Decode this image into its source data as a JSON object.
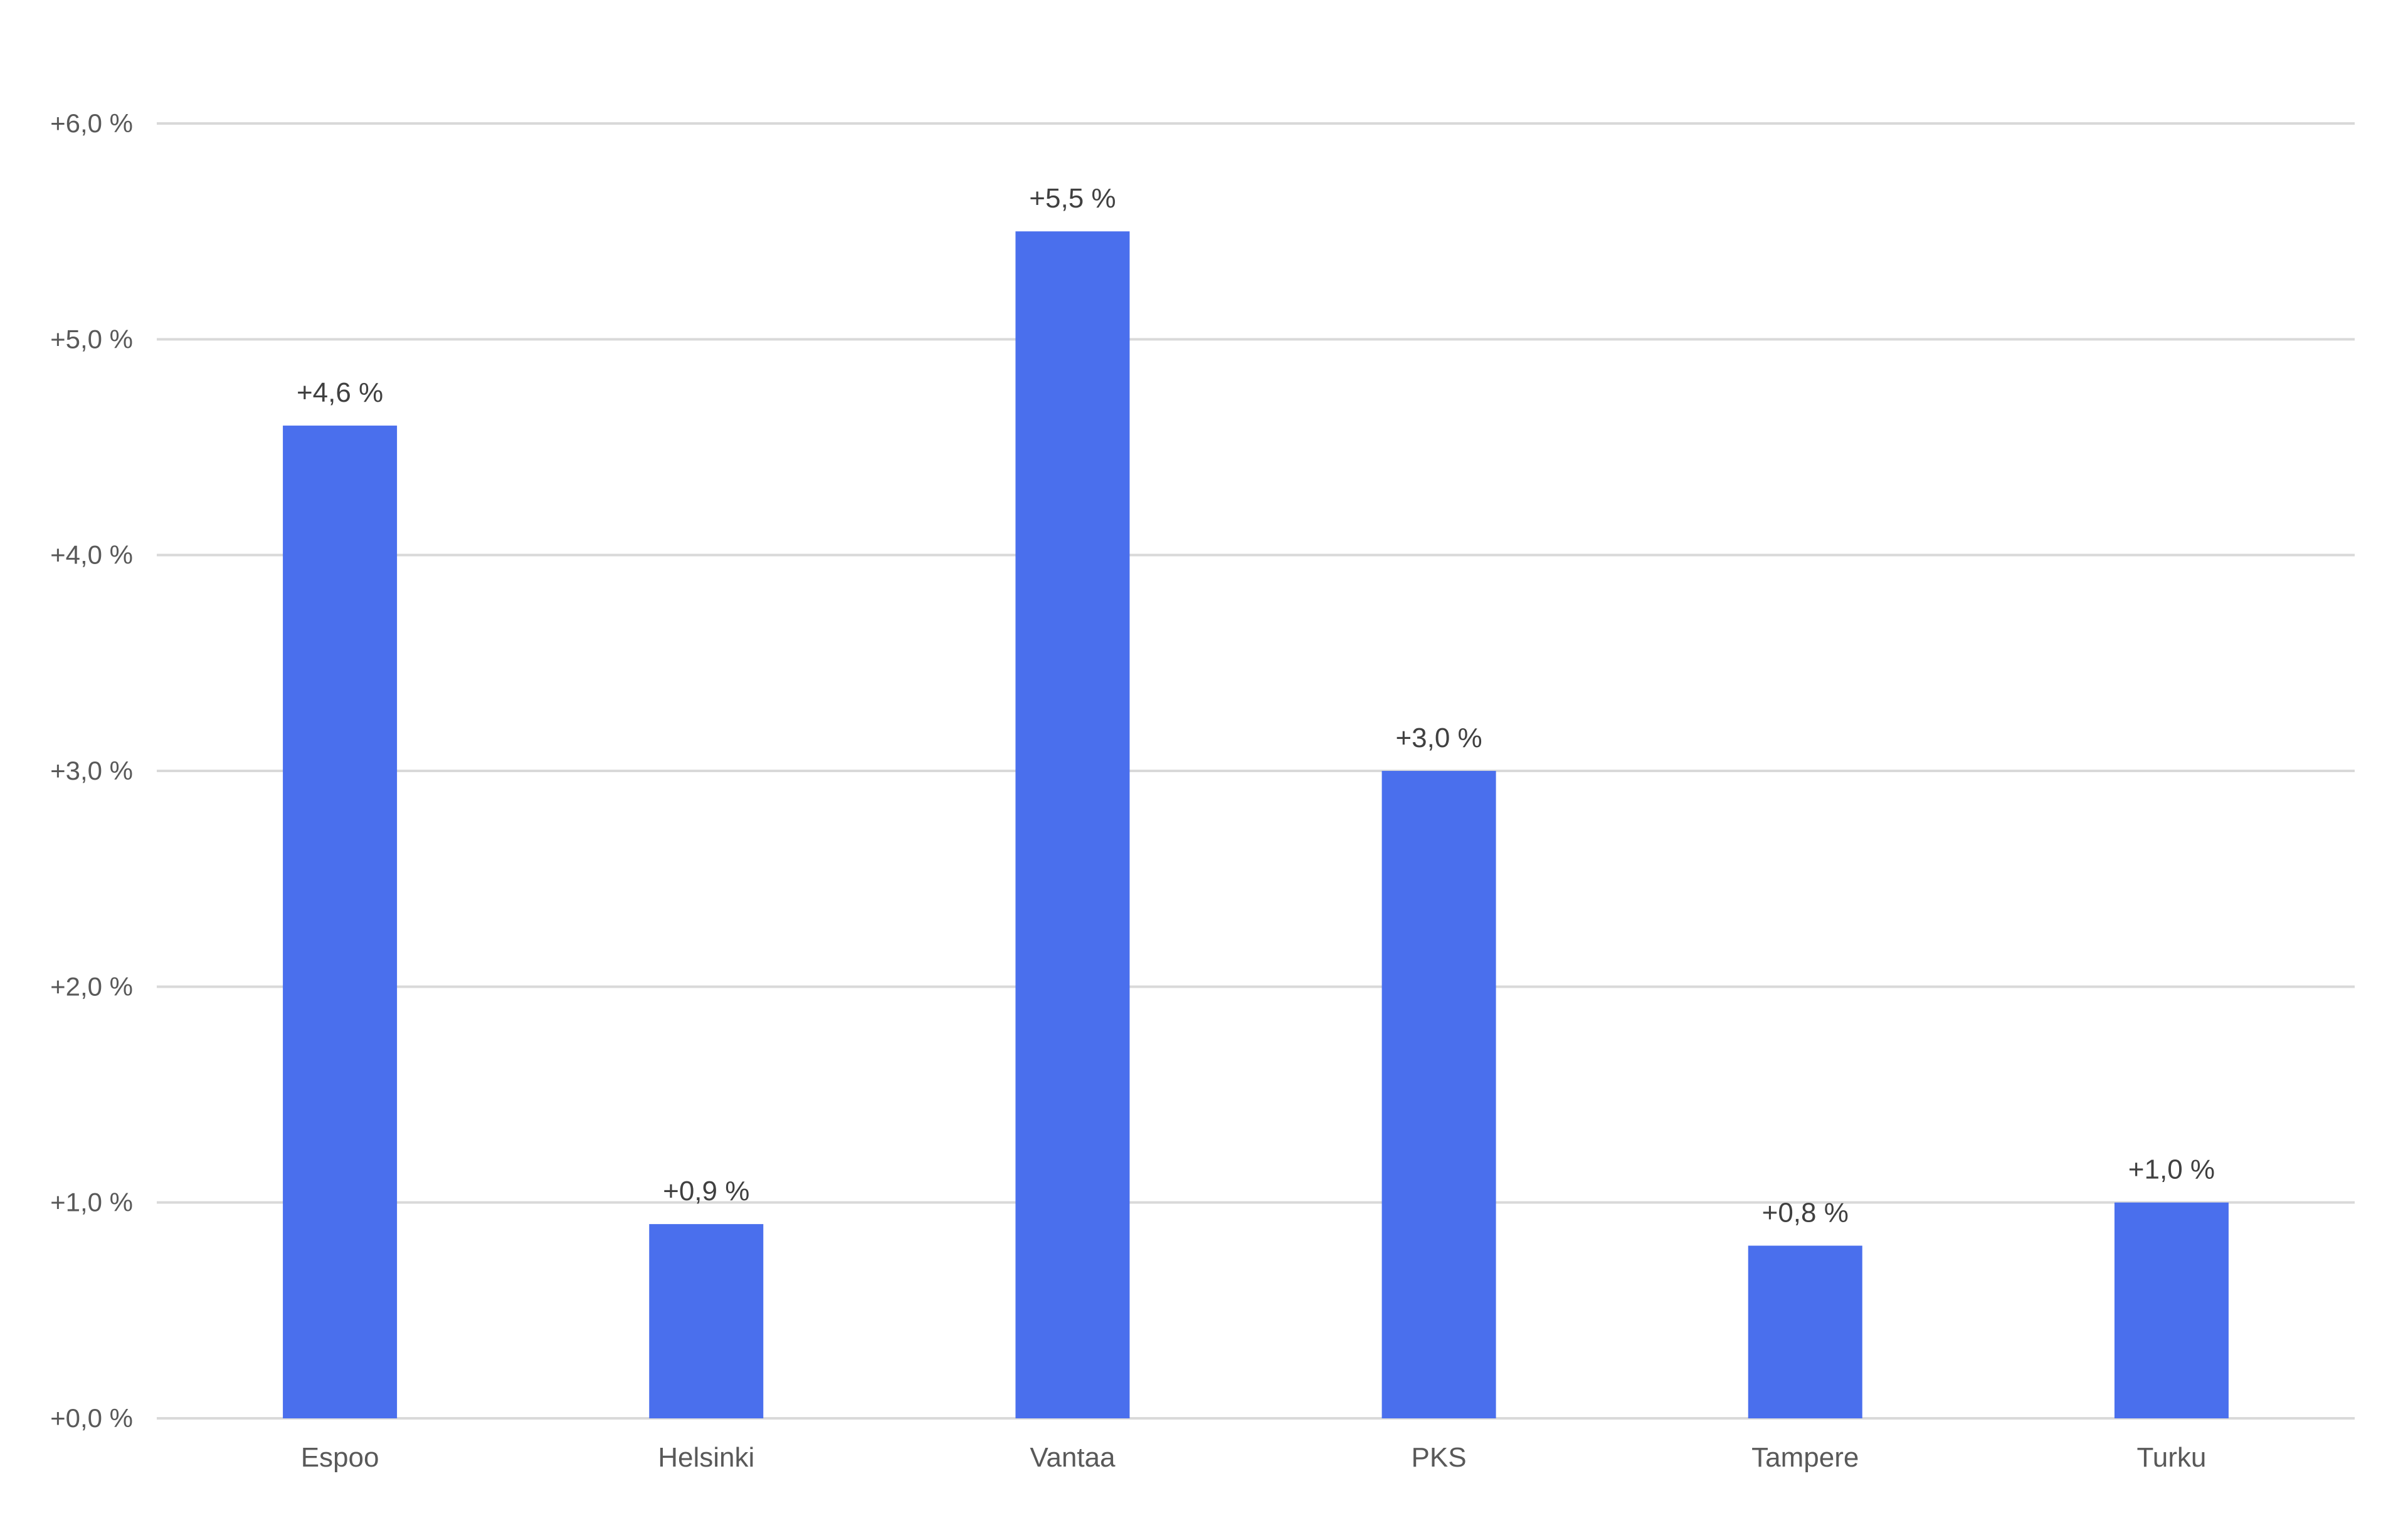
{
  "chart_data": {
    "type": "bar",
    "categories": [
      "Espoo",
      "Helsinki",
      "Vantaa",
      "PKS",
      "Tampere",
      "Turku"
    ],
    "values": [
      4.6,
      0.9,
      5.5,
      3.0,
      0.8,
      1.0
    ],
    "data_labels": [
      "+4,6 %",
      "+0,9 %",
      "+5,5 %",
      "+3,0 %",
      "+0,8 %",
      "+1,0 %"
    ],
    "y_ticks": [
      0,
      1,
      2,
      3,
      4,
      5,
      6
    ],
    "y_tick_labels": [
      "+0,0 %",
      "+1,0 %",
      "+2,0 %",
      "+3,0 %",
      "+4,0 %",
      "+5,0 %",
      "+6,0 %"
    ],
    "ylim": [
      0,
      6
    ],
    "grid": true,
    "bar_color": "#4a6fed",
    "title": "",
    "xlabel": "",
    "ylabel": ""
  }
}
